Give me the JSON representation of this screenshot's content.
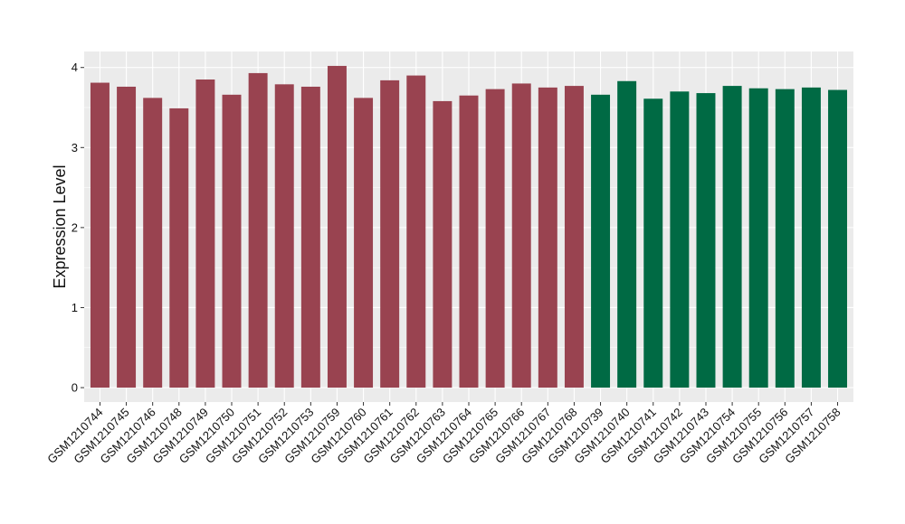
{
  "chart_data": {
    "type": "bar",
    "ylabel": "Expression Level",
    "xlabel": "",
    "ylim": [
      -0.18,
      4.2
    ],
    "yticks": [
      0,
      1,
      2,
      3,
      4
    ],
    "grid": true,
    "background": "#ebebeb",
    "grid_color": "#ffffff",
    "categories": [
      "GSM1210744",
      "GSM1210745",
      "GSM1210746",
      "GSM1210748",
      "GSM1210749",
      "GSM1210750",
      "GSM1210751",
      "GSM1210752",
      "GSM1210753",
      "GSM1210759",
      "GSM1210760",
      "GSM1210761",
      "GSM1210762",
      "GSM1210763",
      "GSM1210764",
      "GSM1210765",
      "GSM1210766",
      "GSM1210767",
      "GSM1210768",
      "GSM1210739",
      "GSM1210740",
      "GSM1210741",
      "GSM1210742",
      "GSM1210743",
      "GSM1210754",
      "GSM1210755",
      "GSM1210756",
      "GSM1210757",
      "GSM1210758"
    ],
    "values": [
      3.81,
      3.76,
      3.62,
      3.49,
      3.85,
      3.66,
      3.93,
      3.79,
      3.76,
      4.02,
      3.62,
      3.84,
      3.9,
      3.58,
      3.65,
      3.73,
      3.8,
      3.75,
      3.77,
      3.66,
      3.83,
      3.61,
      3.7,
      3.68,
      3.77,
      3.74,
      3.73,
      3.75,
      3.72
    ],
    "bar_colors": [
      "#994350",
      "#994350",
      "#994350",
      "#994350",
      "#994350",
      "#994350",
      "#994350",
      "#994350",
      "#994350",
      "#994350",
      "#994350",
      "#994350",
      "#994350",
      "#994350",
      "#994350",
      "#994350",
      "#994350",
      "#994350",
      "#994350",
      "#006a44",
      "#006a44",
      "#006a44",
      "#006a44",
      "#006a44",
      "#006a44",
      "#006a44",
      "#006a44",
      "#006a44",
      "#006a44"
    ]
  }
}
